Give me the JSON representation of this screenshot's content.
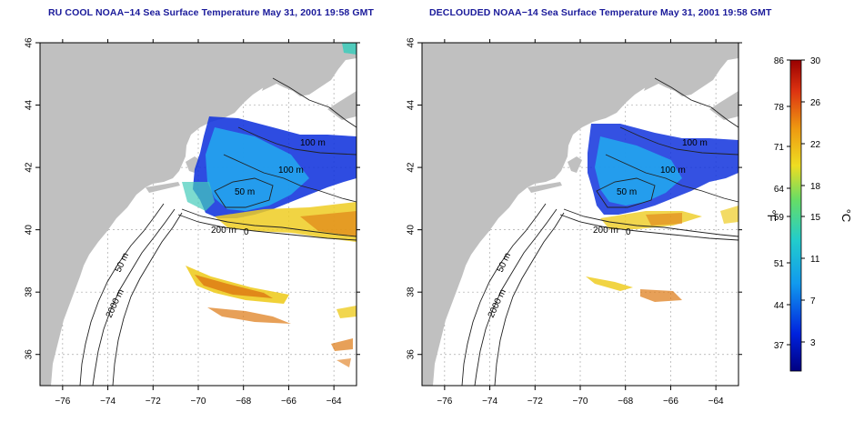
{
  "panels": [
    {
      "title": "RU COOL NOAA−14 Sea Surface Temperature May 31, 2001 19:58 GMT",
      "declouded": false
    },
    {
      "title": "DECLOUDED NOAA−14 Sea Surface Temperature May 31, 2001 19:58 GMT",
      "declouded": true
    }
  ],
  "map": {
    "lon_ticks": [
      "−76",
      "−74",
      "−72",
      "−70",
      "−68",
      "−66",
      "−64"
    ],
    "lat_ticks": [
      "36",
      "38",
      "40",
      "42",
      "44",
      "46"
    ],
    "contour_labels": [
      {
        "text": "100 m"
      },
      {
        "text": "100 m"
      },
      {
        "text": "50 m"
      },
      {
        "text": "200 m"
      },
      {
        "text": "0"
      },
      {
        "text": "50 m"
      },
      {
        "text": "2000 m"
      }
    ]
  },
  "colorbar": {
    "f_ticks": [
      "86",
      "78",
      "71",
      "64",
      "59",
      "51",
      "44",
      "37"
    ],
    "c_ticks": [
      "30",
      "26",
      "22",
      "18",
      "15",
      "11",
      "7",
      "3"
    ],
    "f_unit": "°F",
    "c_unit": "°C"
  },
  "colors": {
    "land": "#c0c0c0",
    "cold": "#1133dd",
    "cool": "#22aaee",
    "mild": "#44ccbb",
    "warm": "#eecc22",
    "hot": "#dd7711",
    "ocean": "#ffffff"
  }
}
